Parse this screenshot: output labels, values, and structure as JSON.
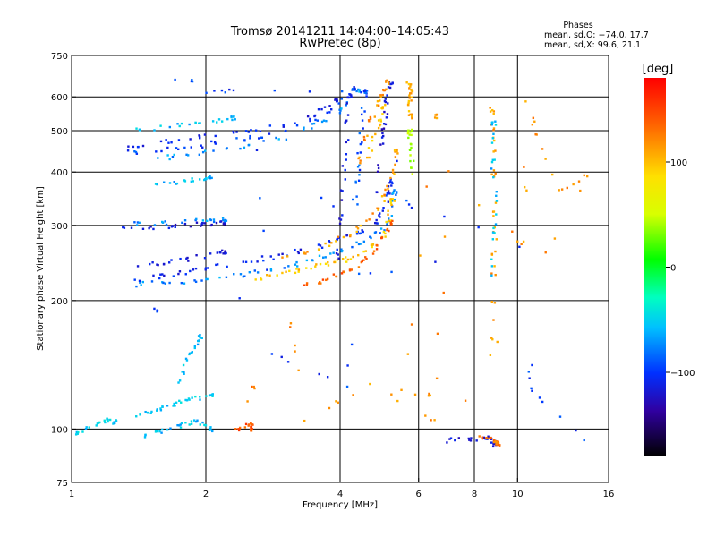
{
  "chart_data": {
    "type": "scatter",
    "title": "Tromsø 20141211 14:04:00–14:05:43",
    "subtitle": "RwPretec (8p)",
    "xlabel": "Frequency [MHz]",
    "ylabel": "Stationary phase Virtual Height [km]",
    "x_scale": "log",
    "y_scale": "log",
    "xlim": [
      1,
      16
    ],
    "ylim": [
      75,
      750
    ],
    "x_ticks": [
      1,
      2,
      4,
      6,
      8,
      10,
      16
    ],
    "y_ticks": [
      75,
      100,
      200,
      300,
      400,
      500,
      600,
      750
    ],
    "grid": true,
    "phase_box": {
      "title": "Phases",
      "line_o": "mean, sd,O: −74.0, 17.7",
      "line_x": "mean, sd,X:  99.6, 21.1"
    },
    "colorbar": {
      "unit": "[deg]",
      "range": [
        -180,
        180
      ],
      "ticks": [
        100,
        0,
        -100
      ],
      "tick_labels": [
        "100",
        "0",
        "−100"
      ]
    },
    "traces": [
      {
        "x": [
          1.7,
          1.85
        ],
        "y": [
          655,
          655
        ],
        "phase": -95
      },
      {
        "x": [
          1.35,
          1.6,
          1.85,
          2.1,
          2.5,
          3.0,
          3.5,
          3.9
        ],
        "y": [
          460,
          470,
          480,
          490,
          500,
          515,
          545,
          590
        ],
        "phase": -110
      },
      {
        "x": [
          1.35,
          1.6,
          1.85,
          2.1,
          2.5,
          3.0,
          3.5,
          4.0,
          4.3
        ],
        "y": [
          445,
          450,
          458,
          468,
          480,
          495,
          530,
          575,
          630
        ],
        "phase": -98
      },
      {
        "x": [
          1.55,
          1.8,
          2.1,
          2.5,
          3.0,
          3.5,
          4.0,
          4.4
        ],
        "y": [
          430,
          438,
          445,
          460,
          480,
          515,
          560,
          620
        ],
        "phase": -72
      },
      {
        "x": [
          1.4,
          1.65,
          1.9,
          2.1,
          2.3
        ],
        "y": [
          500,
          510,
          520,
          525,
          535
        ],
        "phase": -60
      },
      {
        "x": [
          1.55,
          1.7,
          1.85,
          2.0,
          2.05
        ],
        "y": [
          375,
          378,
          382,
          385,
          390
        ],
        "phase": -65
      },
      {
        "x": [
          1.3,
          1.5,
          1.7,
          1.9,
          2.05,
          2.2
        ],
        "y": [
          294,
          297,
          299,
          301,
          303,
          305
        ],
        "phase": -118
      },
      {
        "x": [
          1.4,
          1.6,
          1.8,
          2.05,
          2.2
        ],
        "y": [
          302,
          304,
          306,
          308,
          310
        ],
        "phase": -75
      },
      {
        "x": [
          1.4,
          1.6,
          1.8,
          2.0,
          2.4,
          2.8,
          3.2,
          3.6,
          4.0,
          4.4,
          4.8,
          5.1,
          5.25,
          5.3
        ],
        "y": [
          218,
          220,
          222,
          225,
          230,
          236,
          243,
          252,
          262,
          272,
          285,
          300,
          330,
          360
        ],
        "phase": -75
      },
      {
        "x": [
          1.4,
          1.6,
          1.8,
          2.0,
          2.4,
          2.8,
          3.2,
          3.6,
          4.0,
          4.4,
          4.8,
          5.0,
          5.15,
          5.2
        ],
        "y": [
          224,
          228,
          233,
          238,
          245,
          252,
          260,
          268,
          278,
          290,
          305,
          325,
          355,
          380
        ],
        "phase": -108
      },
      {
        "x": [
          1.4,
          1.6,
          1.8,
          2.05,
          2.2
        ],
        "y": [
          240,
          245,
          250,
          255,
          260
        ],
        "phase": -118
      },
      {
        "x": [
          2.6,
          2.9,
          3.2,
          3.5,
          3.8,
          4.1,
          4.4,
          4.7,
          5.0,
          5.15,
          5.25
        ],
        "y": [
          225,
          230,
          235,
          240,
          244,
          249,
          257,
          268,
          285,
          310,
          345
        ],
        "phase": 100
      },
      {
        "x": [
          3.3,
          3.6,
          3.9,
          4.2,
          4.5,
          4.8,
          5.0,
          5.2
        ],
        "y": [
          218,
          222,
          228,
          236,
          246,
          260,
          280,
          305
        ],
        "phase": 140
      },
      {
        "x": [
          3.0,
          3.4,
          3.8,
          4.2,
          4.6,
          4.9,
          5.1,
          5.25,
          5.35
        ],
        "y": [
          250,
          260,
          272,
          285,
          305,
          330,
          360,
          400,
          450
        ],
        "phase": 115
      },
      {
        "x": [
          3.95,
          4.0,
          4.05,
          4.1,
          4.15,
          4.2
        ],
        "y": [
          250,
          300,
          360,
          430,
          520,
          600
        ],
        "phase": -115
      },
      {
        "x": [
          4.35,
          4.4,
          4.45,
          4.5,
          4.55
        ],
        "y": [
          340,
          400,
          470,
          550,
          620
        ],
        "phase": -92
      },
      {
        "x": [
          4.8,
          4.9,
          5.0,
          5.05,
          5.1,
          5.2
        ],
        "y": [
          360,
          420,
          490,
          540,
          590,
          650
        ],
        "phase": -120
      },
      {
        "x": [
          4.4,
          4.55,
          4.7,
          4.85,
          5.0,
          5.1
        ],
        "y": [
          420,
          480,
          530,
          580,
          620,
          650
        ],
        "phase": 120
      },
      {
        "x": [
          4.6,
          4.75,
          4.9,
          5.0
        ],
        "y": [
          430,
          480,
          530,
          570
        ],
        "phase": 100
      },
      {
        "x": [
          5.7,
          5.75,
          5.8,
          5.7,
          5.75
        ],
        "y": [
          560,
          590,
          620,
          650,
          540
        ],
        "phase": 110
      },
      {
        "x": [
          5.75,
          5.8,
          5.7,
          5.75
        ],
        "y": [
          400,
          440,
          470,
          500
        ],
        "phase": 40
      },
      {
        "x": [
          1.45,
          1.55,
          1.65,
          1.75,
          1.85,
          1.95,
          2.05
        ],
        "y": [
          96,
          98,
          100,
          102,
          104,
          103,
          100
        ],
        "phase": -60
      },
      {
        "x": [
          1.4,
          1.5,
          1.6,
          1.7,
          1.8,
          1.9,
          2.05
        ],
        "y": [
          108,
          110,
          112,
          114,
          116,
          118,
          120
        ],
        "phase": -55
      },
      {
        "x": [
          1.75,
          1.8,
          1.85,
          1.9,
          1.95
        ],
        "y": [
          130,
          140,
          150,
          158,
          165
        ],
        "phase": -58
      },
      {
        "x": [
          2.35,
          2.4,
          2.5,
          2.55
        ],
        "y": [
          100,
          101,
          102,
          100
        ],
        "phase": 145
      },
      {
        "x": [
          2.5,
          2.55
        ],
        "y": [
          115,
          125
        ],
        "phase": 130
      },
      {
        "x": [
          1.02,
          1.08,
          1.15,
          1.2,
          1.25
        ],
        "y": [
          98,
          100,
          103,
          105,
          104
        ],
        "phase": -55
      },
      {
        "x": [
          7.0,
          7.8,
          8.3,
          8.6,
          8.8,
          8.9
        ],
        "y": [
          94,
          95,
          95,
          96,
          94,
          92
        ],
        "phase": -120
      },
      {
        "x": [
          8.3,
          8.6,
          8.9,
          9.0,
          9.05
        ],
        "y": [
          96,
          95,
          94,
          93,
          92
        ],
        "phase": 130
      },
      {
        "x": [
          8.75,
          8.8,
          8.85,
          8.9,
          8.85,
          8.8,
          8.75
        ],
        "y": [
          150,
          200,
          260,
          320,
          400,
          480,
          560
        ],
        "phase": 115
      },
      {
        "x": [
          8.8,
          8.85,
          8.9,
          8.8,
          8.85
        ],
        "y": [
          230,
          290,
          350,
          430,
          520
        ],
        "phase": -60
      },
      {
        "x": [
          3.1,
          3.3,
          4.7,
          6.5,
          7.0,
          10.3,
          10.5,
          11.1,
          12.5,
          14.5,
          7.6,
          5.5,
          6.6
        ],
        "y": [
          175,
          105,
          128,
          105,
          400,
          270,
          590,
          485,
          360,
          395,
          117,
          122,
          540
        ],
        "phase": 120
      },
      {
        "x": [
          2.6,
          2.8,
          4.2,
          4.3,
          10.2,
          10.8,
          14.0,
          2.0,
          2.3,
          4.6,
          6.5,
          1.55
        ],
        "y": [
          450,
          150,
          125,
          380,
          270,
          122,
          95,
          615,
          618,
          620,
          245,
          190
        ],
        "phase": -100
      }
    ]
  }
}
